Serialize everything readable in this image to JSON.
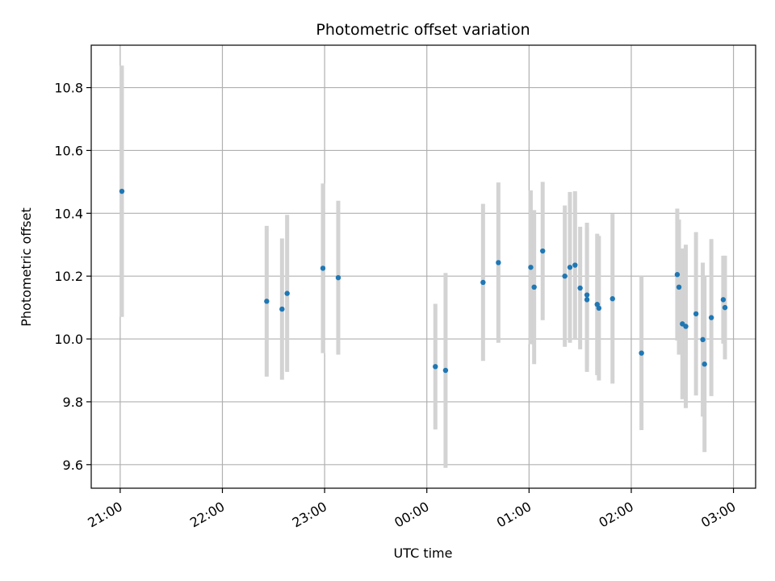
{
  "chart_data": {
    "type": "scatter",
    "title": "Photometric offset variation",
    "xlabel": "UTC time",
    "ylabel": "Photometric offset",
    "grid": true,
    "legend": "none",
    "x_ticks": [
      "21:00",
      "22:00",
      "23:00",
      "00:00",
      "01:00",
      "02:00",
      "03:00"
    ],
    "xlim": [
      "20:43",
      "03:13"
    ],
    "y_ticks": [
      "9.6",
      "9.8",
      "10.0",
      "10.2",
      "10.4",
      "10.6",
      "10.8"
    ],
    "ylim": [
      9.525,
      10.935
    ],
    "colors": {
      "point": "#1f77b4",
      "errorbar": "#d3d3d3",
      "grid": "#b0b0b0"
    },
    "series": [
      {
        "points": [
          {
            "x": "21:01",
            "y": 10.47,
            "err": 0.4
          },
          {
            "x": "22:26",
            "y": 10.12,
            "err": 0.24
          },
          {
            "x": "22:35",
            "y": 10.095,
            "err": 0.225
          },
          {
            "x": "22:38",
            "y": 10.145,
            "err": 0.25
          },
          {
            "x": "22:59",
            "y": 10.225,
            "err": 0.27
          },
          {
            "x": "23:08",
            "y": 10.195,
            "err": 0.245
          },
          {
            "x": "00:05",
            "y": 9.912,
            "err": 0.2
          },
          {
            "x": "00:11",
            "y": 9.9,
            "err": 0.31
          },
          {
            "x": "00:33",
            "y": 10.18,
            "err": 0.25
          },
          {
            "x": "00:42",
            "y": 10.243,
            "err": 0.255
          },
          {
            "x": "01:01",
            "y": 10.228,
            "err": 0.245
          },
          {
            "x": "01:03",
            "y": 10.165,
            "err": 0.245
          },
          {
            "x": "01:08",
            "y": 10.28,
            "err": 0.22
          },
          {
            "x": "01:21",
            "y": 10.2,
            "err": 0.225
          },
          {
            "x": "01:24",
            "y": 10.228,
            "err": 0.24
          },
          {
            "x": "01:27",
            "y": 10.235,
            "err": 0.235
          },
          {
            "x": "01:30",
            "y": 10.162,
            "err": 0.195
          },
          {
            "x": "01:34",
            "y": 10.125,
            "err": 0.23
          },
          {
            "x": "01:34",
            "y": 10.14,
            "err": 0.23
          },
          {
            "x": "01:40",
            "y": 10.11,
            "err": 0.225
          },
          {
            "x": "01:41",
            "y": 10.098,
            "err": 0.23
          },
          {
            "x": "01:49",
            "y": 10.128,
            "err": 0.27
          },
          {
            "x": "02:06",
            "y": 9.955,
            "err": 0.245
          },
          {
            "x": "02:27",
            "y": 10.205,
            "err": 0.21
          },
          {
            "x": "02:28",
            "y": 10.165,
            "err": 0.215
          },
          {
            "x": "02:30",
            "y": 10.048,
            "err": 0.24
          },
          {
            "x": "02:32",
            "y": 10.04,
            "err": 0.26
          },
          {
            "x": "02:38",
            "y": 10.08,
            "err": 0.26
          },
          {
            "x": "02:42",
            "y": 9.998,
            "err": 0.245
          },
          {
            "x": "02:43",
            "y": 9.92,
            "err": 0.28
          },
          {
            "x": "02:47",
            "y": 10.068,
            "err": 0.25
          },
          {
            "x": "02:54",
            "y": 10.125,
            "err": 0.14
          },
          {
            "x": "02:55",
            "y": 10.1,
            "err": 0.165
          }
        ]
      }
    ]
  }
}
